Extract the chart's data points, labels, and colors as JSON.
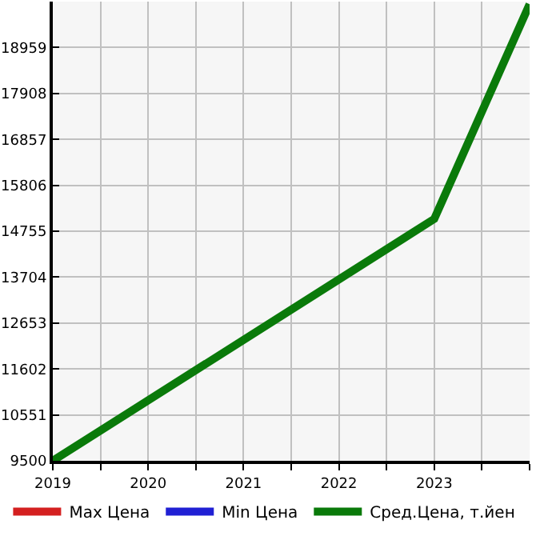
{
  "chart_data": {
    "type": "line",
    "x": [
      2019,
      2023,
      2024
    ],
    "series": [
      {
        "name": "Max Цена",
        "color": "#d42020",
        "values": [
          null,
          null,
          null
        ]
      },
      {
        "name": "Min Цена",
        "color": "#2020d4",
        "values": [
          null,
          null,
          null
        ]
      },
      {
        "name": "Сред.Цена, т.йен",
        "color": "#0a7a0a",
        "values": [
          9500,
          15035,
          19950
        ]
      }
    ],
    "xlim": [
      2019,
      2024
    ],
    "xticks": [
      2019,
      2020,
      2021,
      2022,
      2023
    ],
    "ylim": [
      9500,
      20010
    ],
    "yticks": [
      9500,
      10551,
      11602,
      12653,
      13704,
      14755,
      15806,
      16857,
      17908,
      18959
    ],
    "grid": true,
    "legend": "bottom",
    "marker": "none",
    "line_style": "solid"
  }
}
